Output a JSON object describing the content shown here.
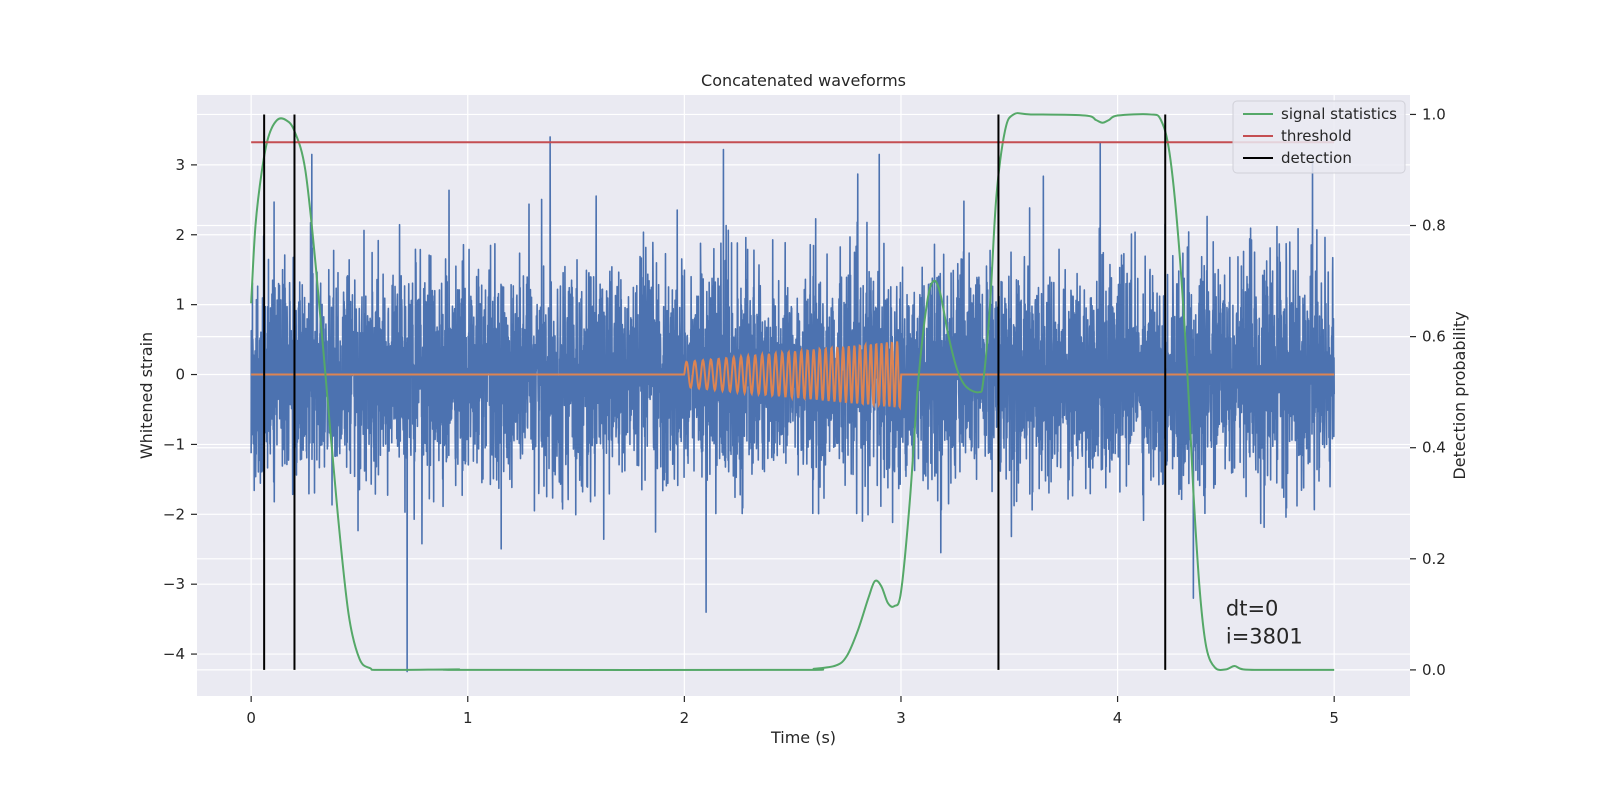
{
  "chart_data": {
    "type": "line",
    "title": "Concatenated waveforms",
    "xlabel": "Time (s)",
    "ylabel": "Whitened strain",
    "y2label": "Detection probability",
    "xlim": [
      -0.25,
      5.35
    ],
    "ylim": [
      -4.6,
      4.0
    ],
    "y2lim": [
      -0.047,
      1.035
    ],
    "x_ticks": [
      0,
      1,
      2,
      3,
      4,
      5
    ],
    "y_ticks": [
      -4,
      -3,
      -2,
      -1,
      0,
      1,
      2,
      3
    ],
    "y2_ticks": [
      0.0,
      0.2,
      0.4,
      0.6,
      0.8,
      1.0
    ],
    "x_tick_labels": [
      "0",
      "1",
      "2",
      "3",
      "4",
      "5"
    ],
    "y_tick_labels": [
      "−4",
      "−3",
      "−2",
      "−1",
      "0",
      "1",
      "2",
      "3"
    ],
    "y2_tick_labels": [
      "0.0",
      "0.2",
      "0.4",
      "0.6",
      "0.8",
      "1.0"
    ],
    "grid": true,
    "legend_position": "top-right",
    "colors": {
      "background": "#eaeaf2",
      "grid": "#ffffff",
      "strain": "#4c72b0",
      "template": "#dd8452",
      "statistics": "#55a868",
      "threshold": "#c44e52",
      "detection": "#000000"
    },
    "series": [
      {
        "name": "",
        "kind": "whitened-strain-noise",
        "axis": "left",
        "x_range": [
          0,
          5
        ],
        "std": 0.75,
        "spikes": [
          {
            "x": 0.06,
            "y": -2.4
          },
          {
            "x": 0.28,
            "y": 3.15
          },
          {
            "x": 0.72,
            "y": -4.25
          },
          {
            "x": 1.38,
            "y": 3.4
          },
          {
            "x": 2.18,
            "y": 3.22
          },
          {
            "x": 2.1,
            "y": -3.4
          },
          {
            "x": 2.9,
            "y": 3.15
          },
          {
            "x": 3.92,
            "y": 3.32
          },
          {
            "x": 4.35,
            "y": -3.2
          },
          {
            "x": 4.9,
            "y": 3.1
          }
        ]
      },
      {
        "name": "",
        "kind": "chirp-template",
        "axis": "left",
        "x_range": [
          0,
          5
        ],
        "chirp_start": 2.0,
        "chirp_end": 3.0,
        "amplitude_start": 0.18,
        "amplitude_end": 0.48,
        "cycles": 34
      },
      {
        "name": "signal statistics",
        "axis": "right",
        "points": [
          [
            0.0,
            0.66
          ],
          [
            0.02,
            0.8
          ],
          [
            0.05,
            0.9
          ],
          [
            0.08,
            0.96
          ],
          [
            0.12,
            0.99
          ],
          [
            0.16,
            0.99
          ],
          [
            0.2,
            0.97
          ],
          [
            0.25,
            0.9
          ],
          [
            0.3,
            0.72
          ],
          [
            0.35,
            0.5
          ],
          [
            0.4,
            0.28
          ],
          [
            0.45,
            0.1
          ],
          [
            0.5,
            0.02
          ],
          [
            0.55,
            0.003
          ],
          [
            0.6,
            0.0
          ],
          [
            0.95,
            0.001
          ],
          [
            1.0,
            0.0
          ],
          [
            2.5,
            0.0
          ],
          [
            2.6,
            0.002
          ],
          [
            2.7,
            0.008
          ],
          [
            2.75,
            0.025
          ],
          [
            2.8,
            0.07
          ],
          [
            2.85,
            0.13
          ],
          [
            2.88,
            0.16
          ],
          [
            2.91,
            0.15
          ],
          [
            2.94,
            0.12
          ],
          [
            2.97,
            0.115
          ],
          [
            3.0,
            0.14
          ],
          [
            3.04,
            0.3
          ],
          [
            3.08,
            0.52
          ],
          [
            3.12,
            0.66
          ],
          [
            3.15,
            0.7
          ],
          [
            3.18,
            0.68
          ],
          [
            3.22,
            0.6
          ],
          [
            3.26,
            0.54
          ],
          [
            3.3,
            0.51
          ],
          [
            3.36,
            0.5
          ],
          [
            3.38,
            0.52
          ],
          [
            3.41,
            0.65
          ],
          [
            3.44,
            0.85
          ],
          [
            3.48,
            0.97
          ],
          [
            3.52,
            1.0
          ],
          [
            3.6,
            1.0
          ],
          [
            3.85,
            0.998
          ],
          [
            3.9,
            0.99
          ],
          [
            3.93,
            0.985
          ],
          [
            3.96,
            0.99
          ],
          [
            4.0,
            0.998
          ],
          [
            4.15,
            1.0
          ],
          [
            4.2,
            0.99
          ],
          [
            4.24,
            0.93
          ],
          [
            4.28,
            0.78
          ],
          [
            4.32,
            0.55
          ],
          [
            4.35,
            0.32
          ],
          [
            4.38,
            0.14
          ],
          [
            4.41,
            0.04
          ],
          [
            4.45,
            0.004
          ],
          [
            4.5,
            0.001
          ],
          [
            4.54,
            0.007
          ],
          [
            4.58,
            0.001
          ],
          [
            4.7,
            0.0
          ],
          [
            5.0,
            0.0
          ]
        ]
      },
      {
        "name": "threshold",
        "axis": "right",
        "x": [
          0,
          5
        ],
        "y": [
          0.95,
          0.95
        ]
      },
      {
        "name": "detection",
        "axis": "right",
        "x": [
          0.06,
          0.2,
          3.45,
          4.22
        ],
        "y_range": [
          0.0,
          1.0
        ]
      }
    ],
    "legend_entries": [
      "signal statistics",
      "threshold",
      "detection"
    ],
    "annotations": [
      "dt=0",
      "i=3801"
    ],
    "annotation_anchor": [
      4.5,
      0.1
    ]
  }
}
